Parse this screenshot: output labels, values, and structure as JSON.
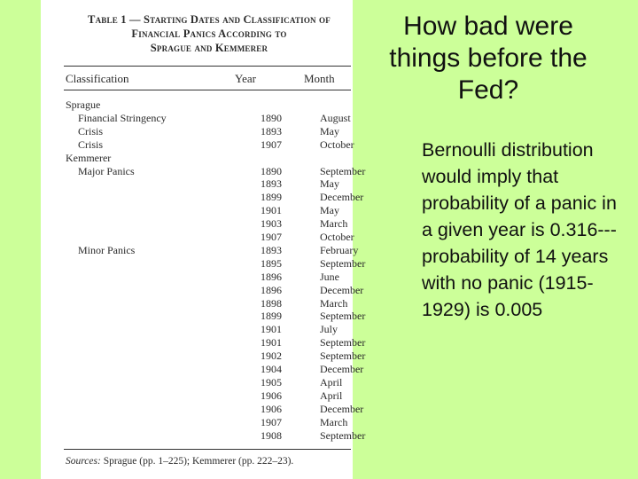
{
  "slide": {
    "title": "How bad were things before the Fed?",
    "body": "Bernoulli distribution would imply that probability of a panic in a given year is 0.316---probability of 14 years with no panic (1915-1929) is 0.005"
  },
  "colors": {
    "background": "#ccff99",
    "scan_background": "#ffffff"
  },
  "table": {
    "title_line1": "Table 1 — Starting Dates and Classification of",
    "title_line2": "Financial Panics According to",
    "title_line3": "Sprague and Kemmerer",
    "headers": {
      "classification": "Classification",
      "year": "Year",
      "month": "Month"
    },
    "rows": [
      {
        "label": "Sprague",
        "year": "",
        "month": ""
      },
      {
        "label": "Financial Stringency",
        "year": "1890",
        "month": "August"
      },
      {
        "label": "Crisis",
        "year": "1893",
        "month": "May"
      },
      {
        "label": "Crisis",
        "year": "1907",
        "month": "October"
      },
      {
        "label": "Kemmerer",
        "year": "",
        "month": ""
      },
      {
        "label": "Major Panics",
        "year": "1890",
        "month": "September"
      },
      {
        "label": "",
        "year": "1893",
        "month": "May"
      },
      {
        "label": "",
        "year": "1899",
        "month": "December"
      },
      {
        "label": "",
        "year": "1901",
        "month": "May"
      },
      {
        "label": "",
        "year": "1903",
        "month": "March"
      },
      {
        "label": "",
        "year": "1907",
        "month": "October"
      },
      {
        "label": "Minor Panics",
        "year": "1893",
        "month": "February"
      },
      {
        "label": "",
        "year": "1895",
        "month": "September"
      },
      {
        "label": "",
        "year": "1896",
        "month": "June"
      },
      {
        "label": "",
        "year": "1896",
        "month": "December"
      },
      {
        "label": "",
        "year": "1898",
        "month": "March"
      },
      {
        "label": "",
        "year": "1899",
        "month": "September"
      },
      {
        "label": "",
        "year": "1901",
        "month": "July"
      },
      {
        "label": "",
        "year": "1901",
        "month": "September"
      },
      {
        "label": "",
        "year": "1902",
        "month": "September"
      },
      {
        "label": "",
        "year": "1904",
        "month": "December"
      },
      {
        "label": "",
        "year": "1905",
        "month": "April"
      },
      {
        "label": "",
        "year": "1906",
        "month": "April"
      },
      {
        "label": "",
        "year": "1906",
        "month": "December"
      },
      {
        "label": "",
        "year": "1907",
        "month": "March"
      },
      {
        "label": "",
        "year": "1908",
        "month": "September"
      }
    ],
    "sources_label": "Sources:",
    "sources_text": " Sprague (pp. 1–225); Kemmerer (pp. 222–23)."
  }
}
